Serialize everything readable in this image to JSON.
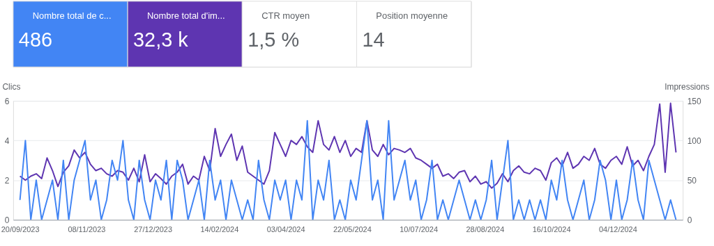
{
  "chart_data": {
    "type": "line",
    "ylabel": "Clics",
    "y2label": "Impressions",
    "grid": "y",
    "annotations": [
      "Nombre total de c...",
      "486",
      "Nombre total d'im...",
      "32,3 k",
      "CTR moyen",
      "1,5 %",
      "Position moyenne",
      "14"
    ],
    "xlim": [
      "2023-09-15",
      "2025-01-21"
    ],
    "xticks": [
      {
        "value": "2023-09-20",
        "label": "20/09/2023"
      },
      {
        "value": "2023-11-08",
        "label": "08/11/2023"
      },
      {
        "value": "2023-12-27",
        "label": "27/12/2023"
      },
      {
        "value": "2024-02-14",
        "label": "14/02/2024"
      },
      {
        "value": "2024-04-03",
        "label": "03/04/2024"
      },
      {
        "value": "2024-05-22",
        "label": "22/05/2024"
      },
      {
        "value": "2024-07-10",
        "label": "10/07/2024"
      },
      {
        "value": "2024-08-28",
        "label": "28/08/2024"
      },
      {
        "value": "2024-10-16",
        "label": "16/10/2024"
      },
      {
        "value": "2024-12-04",
        "label": "04/12/2024"
      }
    ],
    "ylim": [
      0,
      6
    ],
    "yticks": [
      0,
      2,
      4,
      6
    ],
    "y2lim": [
      0,
      150
    ],
    "y2ticks": [
      0,
      50,
      100,
      150
    ],
    "x": [
      "2023-09-20",
      "2023-09-24",
      "2023-09-28",
      "2023-10-02",
      "2023-10-06",
      "2023-10-10",
      "2023-10-14",
      "2023-10-18",
      "2023-10-22",
      "2023-10-26",
      "2023-10-30",
      "2023-11-03",
      "2023-11-07",
      "2023-11-11",
      "2023-11-15",
      "2023-11-19",
      "2023-11-23",
      "2023-11-27",
      "2023-12-01",
      "2023-12-05",
      "2023-12-09",
      "2023-12-13",
      "2023-12-17",
      "2023-12-21",
      "2023-12-25",
      "2023-12-29",
      "2024-01-02",
      "2024-01-06",
      "2024-01-10",
      "2024-01-14",
      "2024-01-18",
      "2024-01-22",
      "2024-01-26",
      "2024-01-30",
      "2024-02-03",
      "2024-02-07",
      "2024-02-11",
      "2024-02-15",
      "2024-02-19",
      "2024-02-23",
      "2024-02-27",
      "2024-03-02",
      "2024-03-06",
      "2024-03-10",
      "2024-03-14",
      "2024-03-18",
      "2024-03-22",
      "2024-03-26",
      "2024-03-30",
      "2024-04-03",
      "2024-04-07",
      "2024-04-11",
      "2024-04-15",
      "2024-04-19",
      "2024-04-23",
      "2024-04-27",
      "2024-05-01",
      "2024-05-05",
      "2024-05-09",
      "2024-05-13",
      "2024-05-17",
      "2024-05-21",
      "2024-05-25",
      "2024-05-29",
      "2024-06-02",
      "2024-06-06",
      "2024-06-10",
      "2024-06-14",
      "2024-06-18",
      "2024-06-22",
      "2024-06-26",
      "2024-06-30",
      "2024-07-04",
      "2024-07-08",
      "2024-07-12",
      "2024-07-16",
      "2024-07-20",
      "2024-07-24",
      "2024-07-28",
      "2024-08-01",
      "2024-08-05",
      "2024-08-09",
      "2024-08-13",
      "2024-08-17",
      "2024-08-21",
      "2024-08-25",
      "2024-08-29",
      "2024-09-02",
      "2024-09-06",
      "2024-09-10",
      "2024-09-14",
      "2024-09-18",
      "2024-09-22",
      "2024-09-26",
      "2024-09-30",
      "2024-10-04",
      "2024-10-08",
      "2024-10-12",
      "2024-10-16",
      "2024-10-20",
      "2024-10-24",
      "2024-10-28",
      "2024-11-01",
      "2024-11-05",
      "2024-11-09",
      "2024-11-13",
      "2024-11-17",
      "2024-11-21",
      "2024-11-25",
      "2024-11-29",
      "2024-12-03",
      "2024-12-07",
      "2024-12-11",
      "2024-12-15",
      "2024-12-19",
      "2024-12-23",
      "2024-12-27",
      "2024-12-31",
      "2025-01-04",
      "2025-01-08",
      "2025-01-12",
      "2025-01-16"
    ],
    "series": [
      {
        "color": "#4285f4",
        "values": [
          1,
          4,
          0,
          2,
          0,
          1,
          2,
          0,
          3,
          0,
          2,
          3,
          4,
          1,
          2,
          0,
          1,
          3,
          2,
          4,
          1,
          0,
          3,
          1,
          0,
          2,
          1,
          3,
          0,
          3,
          2,
          0,
          1,
          2,
          0,
          3,
          1,
          2,
          0,
          2,
          1,
          0,
          1,
          0,
          3,
          1,
          0,
          2,
          1,
          2,
          0,
          2,
          1,
          5,
          0,
          2,
          1,
          3,
          0,
          1,
          0,
          2,
          1,
          3,
          5,
          1,
          2,
          0,
          5,
          1,
          2,
          3,
          1,
          2,
          0,
          1,
          3,
          0,
          1,
          0,
          1,
          2,
          1,
          0,
          1,
          0,
          1,
          3,
          0,
          2,
          4,
          0,
          1,
          0,
          1,
          0,
          1,
          0,
          2,
          1,
          3,
          1,
          0,
          1,
          2,
          0,
          1,
          3,
          2,
          0,
          2,
          0,
          1,
          3,
          1,
          0,
          3,
          2,
          1,
          0,
          1,
          0
        ]
      },
      {
        "color": "#5e35b1",
        "axis": "y2",
        "values": [
          55,
          50,
          55,
          58,
          52,
          78,
          62,
          42,
          60,
          68,
          88,
          78,
          85,
          70,
          62,
          65,
          58,
          55,
          62,
          60,
          50,
          65,
          48,
          82,
          48,
          58,
          52,
          45,
          55,
          60,
          70,
          45,
          55,
          50,
          80,
          62,
          115,
          80,
          95,
          108,
          75,
          93,
          60,
          55,
          50,
          45,
          62,
          110,
          95,
          80,
          100,
          95,
          105,
          92,
          85,
          125,
          95,
          88,
          105,
          85,
          100,
          80,
          90,
          85,
          125,
          88,
          80,
          95,
          82,
          90,
          88,
          85,
          90,
          78,
          75,
          70,
          65,
          70,
          55,
          58,
          52,
          60,
          62,
          48,
          55,
          45,
          48,
          40,
          46,
          58,
          48,
          62,
          68,
          60,
          58,
          65,
          62,
          50,
          72,
          78,
          68,
          85,
          65,
          70,
          80,
          75,
          90,
          70,
          65,
          75,
          80,
          70,
          92,
          68,
          75,
          62,
          80,
          95,
          146,
          60,
          147,
          85
        ]
      }
    ]
  }
}
